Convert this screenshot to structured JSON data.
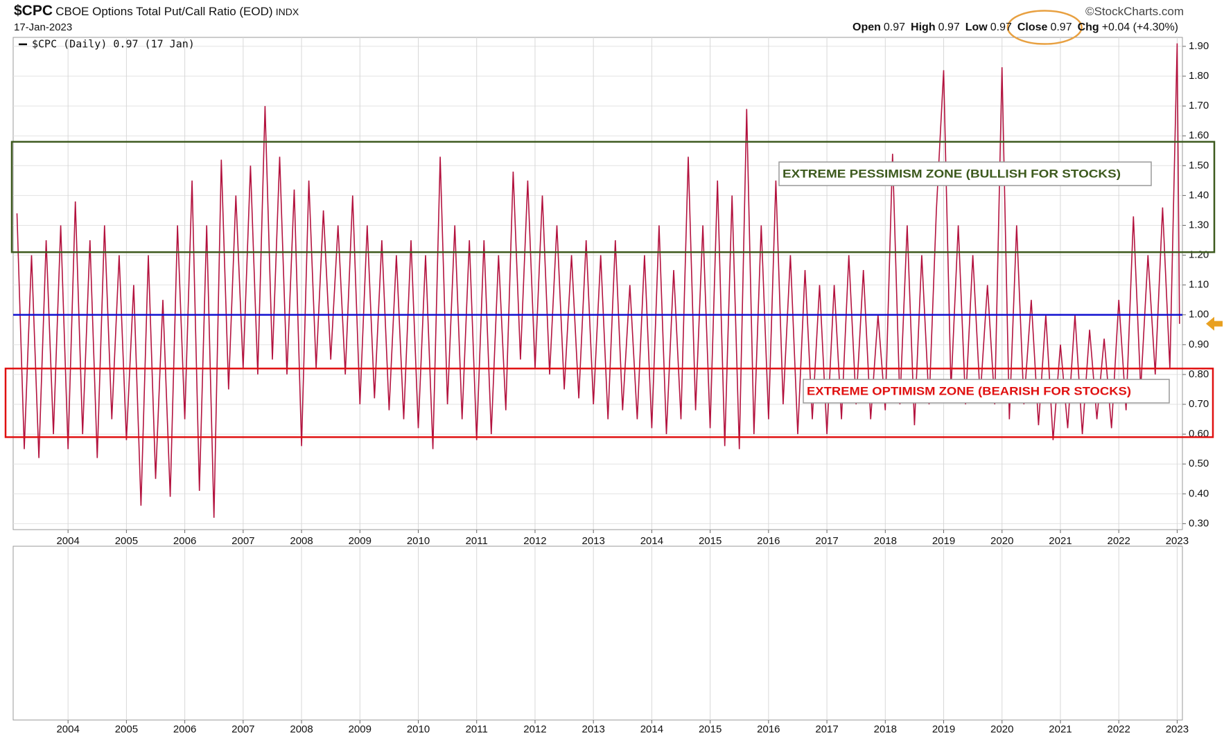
{
  "header": {
    "symbol": "$CPC",
    "name": "CBOE Options Total Put/Call Ratio (EOD)",
    "exchange": "INDX",
    "date": "17-Jan-2023",
    "source": "©StockCharts.com",
    "quote": [
      {
        "label": "Open",
        "value": 0.97
      },
      {
        "label": "High",
        "value": 0.97
      },
      {
        "label": "Low",
        "value": 0.97
      },
      {
        "label": "Close",
        "value": 0.97
      },
      {
        "label": "Chg",
        "value": "+0.04 (+4.30%)"
      }
    ]
  },
  "chart_data": {
    "type": "line",
    "x": [
      2003.125,
      2003.25,
      2003.375,
      2003.5,
      2003.625,
      2003.75,
      2003.875,
      2004,
      2004.125,
      2004.25,
      2004.375,
      2004.5,
      2004.625,
      2004.75,
      2004.875,
      2005,
      2005.125,
      2005.25,
      2005.375,
      2005.5,
      2005.625,
      2005.75,
      2005.875,
      2006,
      2006.125,
      2006.25,
      2006.375,
      2006.5,
      2006.625,
      2006.75,
      2006.875,
      2007,
      2007.125,
      2007.25,
      2007.375,
      2007.5,
      2007.625,
      2007.75,
      2007.875,
      2008,
      2008.125,
      2008.25,
      2008.375,
      2008.5,
      2008.625,
      2008.75,
      2008.875,
      2009,
      2009.125,
      2009.25,
      2009.375,
      2009.5,
      2009.625,
      2009.75,
      2009.875,
      2010,
      2010.125,
      2010.25,
      2010.375,
      2010.5,
      2010.625,
      2010.75,
      2010.875,
      2011,
      2011.125,
      2011.25,
      2011.375,
      2011.5,
      2011.625,
      2011.75,
      2011.875,
      2012,
      2012.125,
      2012.25,
      2012.375,
      2012.5,
      2012.625,
      2012.75,
      2012.875,
      2013,
      2013.125,
      2013.25,
      2013.375,
      2013.5,
      2013.625,
      2013.75,
      2013.875,
      2014,
      2014.125,
      2014.25,
      2014.375,
      2014.5,
      2014.625,
      2014.75,
      2014.875,
      2015,
      2015.125,
      2015.25,
      2015.375,
      2015.5,
      2015.625,
      2015.75,
      2015.875,
      2016,
      2016.125,
      2016.25,
      2016.375,
      2016.5,
      2016.625,
      2016.75,
      2016.875,
      2017,
      2017.125,
      2017.25,
      2017.375,
      2017.5,
      2017.625,
      2017.75,
      2017.875,
      2018,
      2018.125,
      2018.25,
      2018.375,
      2018.5,
      2018.625,
      2018.75,
      2018.875,
      2019,
      2019.125,
      2019.25,
      2019.375,
      2019.5,
      2019.625,
      2019.75,
      2019.875,
      2020,
      2020.125,
      2020.25,
      2020.375,
      2020.5,
      2020.625,
      2020.75,
      2020.875,
      2021,
      2021.125,
      2021.25,
      2021.375,
      2021.5,
      2021.625,
      2021.75,
      2021.875,
      2022,
      2022.125,
      2022.25,
      2022.375,
      2022.5,
      2022.625,
      2022.75,
      2022.875,
      2023,
      2023.04
    ],
    "series": [
      {
        "name": "$CPC (Daily) 0.97 (17 Jan)",
        "color": "#b3123e",
        "values": [
          1.34,
          0.55,
          1.2,
          0.52,
          1.25,
          0.6,
          1.3,
          0.55,
          1.38,
          0.6,
          1.25,
          0.52,
          1.3,
          0.65,
          1.2,
          0.58,
          1.1,
          0.36,
          1.2,
          0.45,
          1.05,
          0.39,
          1.3,
          0.65,
          1.45,
          0.41,
          1.3,
          0.32,
          1.52,
          0.75,
          1.4,
          0.82,
          1.5,
          0.8,
          1.7,
          0.85,
          1.53,
          0.8,
          1.42,
          0.56,
          1.45,
          0.82,
          1.35,
          0.85,
          1.3,
          0.8,
          1.4,
          0.7,
          1.3,
          0.72,
          1.25,
          0.68,
          1.2,
          0.65,
          1.25,
          0.62,
          1.2,
          0.55,
          1.53,
          0.7,
          1.3,
          0.65,
          1.25,
          0.58,
          1.25,
          0.6,
          1.2,
          0.68,
          1.48,
          0.85,
          1.45,
          0.82,
          1.4,
          0.8,
          1.3,
          0.75,
          1.2,
          0.72,
          1.25,
          0.7,
          1.2,
          0.65,
          1.25,
          0.68,
          1.1,
          0.65,
          1.2,
          0.62,
          1.3,
          0.6,
          1.15,
          0.65,
          1.53,
          0.68,
          1.3,
          0.62,
          1.45,
          0.56,
          1.4,
          0.55,
          1.69,
          0.6,
          1.3,
          0.65,
          1.45,
          0.7,
          1.2,
          0.6,
          1.15,
          0.65,
          1.1,
          0.6,
          1.1,
          0.65,
          1.2,
          0.7,
          1.15,
          0.65,
          1.0,
          0.68,
          1.54,
          0.7,
          1.3,
          0.63,
          1.2,
          0.7,
          1.35,
          1.82,
          0.75,
          1.3,
          0.7,
          1.2,
          0.72,
          1.1,
          0.7,
          1.83,
          0.65,
          1.3,
          0.7,
          1.05,
          0.63,
          1.0,
          0.58,
          0.9,
          0.62,
          1.0,
          0.6,
          0.95,
          0.65,
          0.92,
          0.62,
          1.05,
          0.68,
          1.33,
          0.75,
          1.2,
          0.8,
          1.36,
          0.82,
          1.91,
          0.97
        ]
      }
    ],
    "xlim": [
      2003.06,
      2023.09
    ],
    "ylim": [
      0.28,
      1.93
    ],
    "xticks": [
      2004,
      2005,
      2006,
      2007,
      2008,
      2009,
      2010,
      2011,
      2012,
      2013,
      2014,
      2015,
      2016,
      2017,
      2018,
      2019,
      2020,
      2021,
      2022,
      2023
    ],
    "yticks": [
      {
        "value": 0.3,
        "label": "0.30"
      },
      {
        "value": 0.4,
        "label": "0.40"
      },
      {
        "value": 0.5,
        "label": "0.50"
      },
      {
        "value": 0.6,
        "label": "0.60"
      },
      {
        "value": 0.7,
        "label": "0.70"
      },
      {
        "value": 0.8,
        "label": "0.80"
      },
      {
        "value": 0.9,
        "label": "0.90"
      },
      {
        "value": 1.0,
        "label": "1.00"
      },
      {
        "value": 1.1,
        "label": "1.10"
      },
      {
        "value": 1.2,
        "label": "1.20"
      },
      {
        "value": 1.3,
        "label": "1.30"
      },
      {
        "value": 1.4,
        "label": "1.40"
      },
      {
        "value": 1.5,
        "label": "1.50"
      },
      {
        "value": 1.6,
        "label": "1.60"
      },
      {
        "value": 1.7,
        "label": "1.70"
      },
      {
        "value": 1.8,
        "label": "1.80"
      },
      {
        "value": 1.9,
        "label": "1.90"
      }
    ],
    "grid": true,
    "reference_line": {
      "value": 1.0,
      "color": "#1010d0"
    },
    "zones": [
      {
        "label": "EXTREME PESSIMISM ZONE (BULLISH FOR STOCKS)",
        "ymin": 1.21,
        "ymax": 1.58,
        "color": "#3d5a1e"
      },
      {
        "label": "EXTREME OPTIMISM ZONE (BEARISH FOR STOCKS)",
        "ymin": 0.59,
        "ymax": 0.82,
        "color": "#e01010"
      }
    ]
  }
}
